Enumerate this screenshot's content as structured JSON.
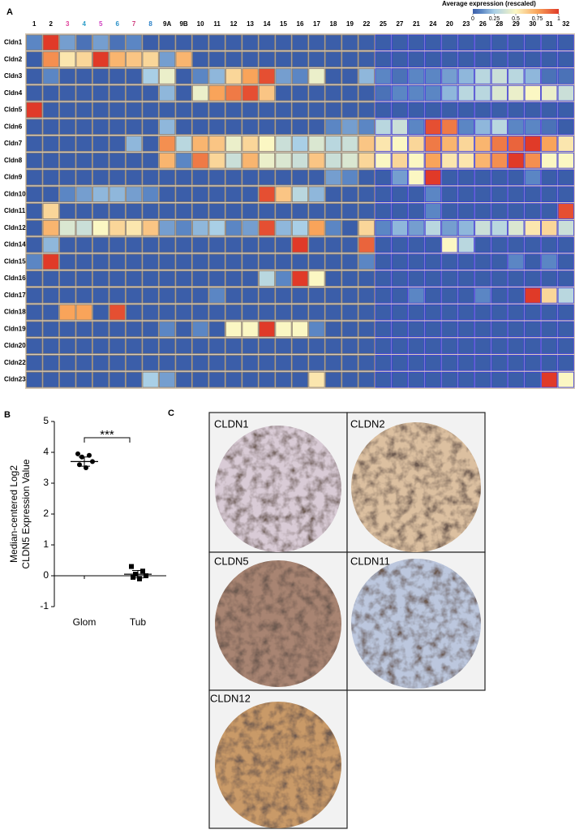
{
  "panels": {
    "labels": [
      "A",
      "B",
      "C"
    ]
  },
  "chart_data": [
    {
      "type": "heatmap",
      "categories": [
        "1",
        "2",
        "3",
        "4",
        "5",
        "6",
        "7",
        "8",
        "9A",
        "9B",
        "10",
        "11",
        "12",
        "13",
        "14",
        "15",
        "16",
        "17",
        "18",
        "19",
        "22",
        "25",
        "27",
        "21",
        "24",
        "20",
        "23",
        "26",
        "28",
        "29",
        "30",
        "31",
        "32"
      ],
      "category_colors": [
        "#000000",
        "#000000",
        "#e0409a",
        "#2a9cc8",
        "#d040c0",
        "#2a90c8",
        "#d04080",
        "#2a80c8",
        "#000000",
        "#000000",
        "#000000",
        "#000000",
        "#000000",
        "#000000",
        "#000000",
        "#000000",
        "#000000",
        "#000000",
        "#000000",
        "#000000",
        "#000000",
        "#000000",
        "#000000",
        "#000000",
        "#000000",
        "#000000",
        "#000000",
        "#000000",
        "#000000",
        "#000000",
        "#000000",
        "#000000",
        "#000000"
      ],
      "rows": [
        "Cldn1",
        "Cldn2",
        "Cldn3",
        "Cldn4",
        "Cldn5",
        "Cldn6",
        "Cldn7",
        "Cldn8",
        "Cldn9",
        "Cldn10",
        "Cldn11",
        "Cldn12",
        "Cldn14",
        "Cldn15",
        "Cldn16",
        "Cldn17",
        "Cldn18",
        "Cldn19",
        "Cldn20",
        "Cldn22",
        "Cldn23"
      ],
      "values": [
        [
          0.1,
          1,
          0.15,
          0.05,
          0.15,
          0.05,
          0.1,
          0,
          0,
          0,
          0,
          0,
          0,
          0,
          0,
          0,
          0,
          0,
          0,
          0,
          0,
          0,
          0,
          0,
          0,
          0,
          0,
          0,
          0,
          0,
          0,
          0,
          0
        ],
        [
          0,
          0.8,
          0.55,
          0.6,
          1,
          0.7,
          0.65,
          0.6,
          0.15,
          0.7,
          0,
          0,
          0,
          0,
          0,
          0,
          0,
          0,
          0,
          0,
          0,
          0,
          0,
          0,
          0,
          0,
          0,
          0,
          0,
          0,
          0,
          0,
          0
        ],
        [
          0,
          0.1,
          0,
          0,
          0,
          0,
          0,
          0.25,
          0.45,
          0,
          0.1,
          0.2,
          0.6,
          0.75,
          0.95,
          0.15,
          0.1,
          0.45,
          0,
          0,
          0.2,
          0.1,
          0.05,
          0.1,
          0.1,
          0.15,
          0.2,
          0.3,
          0.35,
          0.3,
          0.2,
          0.05,
          0.05
        ],
        [
          0,
          0,
          0,
          0,
          0,
          0,
          0,
          0,
          0.2,
          0,
          0.45,
          0.75,
          0.85,
          0.95,
          0.65,
          0,
          0,
          0,
          0,
          0,
          0,
          0.05,
          0.1,
          0.1,
          0.1,
          0.2,
          0.3,
          0.3,
          0.4,
          0.45,
          0.5,
          0.45,
          0.35
        ],
        [
          1,
          0,
          0,
          0,
          0,
          0,
          0,
          0,
          0,
          0,
          0,
          0,
          0,
          0,
          0,
          0,
          0,
          0,
          0,
          0,
          0,
          0,
          0,
          0,
          0,
          0,
          0,
          0,
          0,
          0,
          0,
          0,
          0
        ],
        [
          0,
          0,
          0,
          0,
          0,
          0,
          0,
          0,
          0.2,
          0,
          0,
          0,
          0,
          0,
          0,
          0,
          0,
          0,
          0.1,
          0.15,
          0.1,
          0.3,
          0.35,
          0.1,
          0.95,
          0.85,
          0.1,
          0.2,
          0.3,
          0.1,
          0.1,
          0.05,
          0
        ],
        [
          0,
          0,
          0,
          0,
          0,
          0,
          0.2,
          0,
          0.8,
          0.3,
          0.7,
          0.65,
          0.45,
          0.6,
          0.5,
          0.35,
          0.25,
          0.4,
          0.3,
          0.35,
          0.65,
          0.55,
          0.5,
          0.6,
          0.85,
          0.7,
          0.6,
          0.7,
          0.85,
          0.9,
          1,
          0.75,
          0.55
        ],
        [
          0,
          0,
          0,
          0,
          0,
          0,
          0,
          0,
          0.7,
          0.1,
          0.85,
          0.6,
          0.35,
          0.7,
          0.45,
          0.4,
          0.35,
          0.65,
          0.35,
          0.4,
          0.6,
          0.5,
          0.6,
          0.5,
          0.75,
          0.55,
          0.55,
          0.7,
          0.8,
          1,
          0.8,
          0.5,
          0.5
        ],
        [
          0,
          0,
          0,
          0,
          0,
          0,
          0,
          0,
          0,
          0,
          0,
          0,
          0,
          0,
          0,
          0,
          0,
          0,
          0.15,
          0.1,
          0,
          0,
          0.15,
          0.5,
          1,
          0,
          0,
          0,
          0,
          0,
          0.1,
          0,
          0
        ],
        [
          0,
          0,
          0.1,
          0.15,
          0.2,
          0.2,
          0.15,
          0.1,
          0,
          0,
          0,
          0,
          0,
          0,
          0.95,
          0.65,
          0.3,
          0.2,
          0,
          0,
          0,
          0,
          0,
          0,
          0.1,
          0,
          0,
          0,
          0,
          0,
          0,
          0,
          0
        ],
        [
          0,
          0.6,
          0,
          0,
          0,
          0,
          0,
          0,
          0,
          0,
          0,
          0,
          0,
          0,
          0,
          0,
          0,
          0,
          0,
          0,
          0,
          0,
          0,
          0,
          0.1,
          0,
          0,
          0,
          0,
          0,
          0,
          0,
          0.95
        ],
        [
          0,
          0.7,
          0.4,
          0.35,
          0.5,
          0.6,
          0.55,
          0.65,
          0.15,
          0.1,
          0.2,
          0.25,
          0.1,
          0.15,
          0.95,
          0.2,
          0.25,
          0.75,
          0.1,
          0,
          0.6,
          0.1,
          0.2,
          0.15,
          0.3,
          0.15,
          0.2,
          0.35,
          0.3,
          0.4,
          0.55,
          0.6,
          0.35
        ],
        [
          0,
          0.2,
          0,
          0,
          0,
          0,
          0,
          0,
          0,
          0,
          0,
          0,
          0,
          0,
          0,
          0,
          1,
          0,
          0,
          0,
          0.9,
          0,
          0,
          0,
          0,
          0.5,
          0.3,
          0,
          0,
          0,
          0,
          0,
          0
        ],
        [
          0.1,
          1,
          0,
          0,
          0,
          0,
          0,
          0,
          0,
          0,
          0,
          0,
          0,
          0,
          0,
          0,
          0,
          0,
          0,
          0,
          0.1,
          0,
          0,
          0,
          0,
          0,
          0,
          0,
          0,
          0.1,
          0,
          0.1,
          0
        ],
        [
          0,
          0,
          0,
          0,
          0,
          0,
          0,
          0,
          0,
          0,
          0,
          0,
          0,
          0,
          0.3,
          0.1,
          1,
          0.5,
          0,
          0,
          0,
          0,
          0,
          0,
          0,
          0,
          0,
          0,
          0,
          0,
          0,
          0,
          0
        ],
        [
          0,
          0,
          0,
          0,
          0,
          0,
          0,
          0,
          0,
          0,
          0,
          0.1,
          0,
          0,
          0,
          0,
          0,
          0,
          0,
          0,
          0,
          0,
          0,
          0.1,
          0,
          0,
          0,
          0.1,
          0,
          0,
          1,
          0.6,
          0.3
        ],
        [
          0,
          0,
          0.75,
          0.75,
          0,
          0.95,
          0,
          0,
          0,
          0,
          0,
          0,
          0,
          0,
          0,
          0,
          0,
          0,
          0,
          0,
          0,
          0,
          0,
          0,
          0,
          0,
          0,
          0,
          0,
          0,
          0,
          0,
          0
        ],
        [
          0,
          0,
          0,
          0,
          0,
          0,
          0,
          0,
          0.1,
          0,
          0.1,
          0,
          0.5,
          0.5,
          1,
          0.5,
          0.5,
          0.1,
          0,
          0,
          0,
          0,
          0,
          0,
          0,
          0,
          0,
          0,
          0,
          0,
          0,
          0,
          0
        ],
        [
          0,
          0,
          0,
          0,
          0,
          0,
          0,
          0,
          0,
          0,
          0,
          0,
          0,
          0,
          0,
          0,
          0,
          0,
          0,
          0,
          0,
          0,
          0,
          0,
          0,
          0,
          0,
          0,
          0,
          0,
          0,
          0,
          0
        ],
        [
          0,
          0,
          0,
          0,
          0,
          0,
          0,
          0,
          0,
          0,
          0,
          0,
          0,
          0,
          0,
          0,
          0,
          0,
          0,
          0,
          0,
          0,
          0,
          0,
          0,
          0,
          0,
          0,
          0,
          0,
          0,
          0,
          0
        ],
        [
          0,
          0,
          0,
          0,
          0,
          0,
          0,
          0.25,
          0.15,
          0,
          0,
          0,
          0,
          0,
          0,
          0,
          0,
          0.55,
          0,
          0,
          0,
          0,
          0,
          0,
          0,
          0,
          0,
          0,
          0,
          0,
          0,
          1,
          0.5
        ]
      ],
      "colorscale": [
        [
          0,
          "#3b5ea9"
        ],
        [
          0.1,
          "#5b86c4"
        ],
        [
          0.25,
          "#a9cfe6"
        ],
        [
          0.5,
          "#fbf7c3"
        ],
        [
          0.75,
          "#f9a45a"
        ],
        [
          1,
          "#e03a28"
        ]
      ],
      "colorbar": {
        "title": "Average expression (rescaled)",
        "lim": [
          0,
          1
        ],
        "ticks": [
          0,
          0.25,
          0.5,
          0.75,
          1
        ]
      }
    },
    {
      "type": "dotplot",
      "ylabel": [
        "Median-centered Log2",
        "CLDN5 Expression Value"
      ],
      "categories": [
        "Glom",
        "Tub"
      ],
      "values": [
        [
          3.95,
          3.9,
          3.85,
          3.7,
          3.6,
          3.5
        ],
        [
          0.3,
          0.15,
          0.05,
          0,
          -0.05,
          -0.1
        ]
      ],
      "means": [
        3.7,
        0.05
      ],
      "errors": [
        0.15,
        0.12
      ],
      "markers": [
        "circle",
        "square"
      ],
      "color": "#000000",
      "ylim": [
        -1,
        5
      ],
      "yticks": [
        -1,
        0,
        1,
        2,
        3,
        4,
        5
      ],
      "annotation": "***"
    }
  ],
  "images": {
    "labels": [
      "CLDN1",
      "CLDN2",
      "CLDN5",
      "CLDN11",
      "CLDN12"
    ]
  }
}
